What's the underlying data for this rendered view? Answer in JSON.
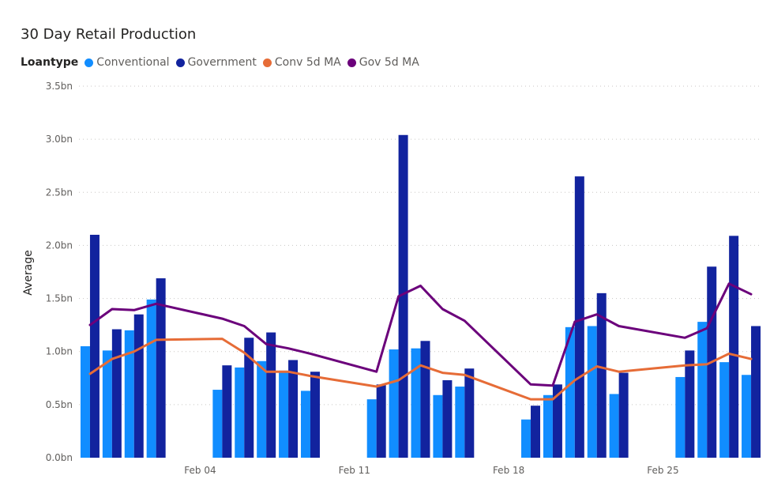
{
  "chart_data": {
    "type": "bar",
    "title": "30 Day Retail Production",
    "legend_title": "Loantype",
    "ylabel": "Average",
    "xlabel": "",
    "ylim": [
      0,
      3.5
    ],
    "y_ticks": [
      "0.0bn",
      "0.5bn",
      "1.0bn",
      "1.5bn",
      "2.0bn",
      "2.5bn",
      "3.0bn",
      "3.5bn"
    ],
    "x_ticks": [
      "Feb 04",
      "Feb 11",
      "Feb 18",
      "Feb 25"
    ],
    "grid": true,
    "legend_position": "top-left",
    "dates": [
      "2024-01-30",
      "2024-01-31",
      "2024-02-01",
      "2024-02-02",
      "2024-02-05",
      "2024-02-06",
      "2024-02-07",
      "2024-02-08",
      "2024-02-09",
      "2024-02-12",
      "2024-02-13",
      "2024-02-14",
      "2024-02-15",
      "2024-02-16",
      "2024-02-19",
      "2024-02-20",
      "2024-02-21",
      "2024-02-22",
      "2024-02-23",
      "2024-02-26",
      "2024-02-27",
      "2024-02-28",
      "2024-02-29"
    ],
    "series": [
      {
        "name": "Conventional",
        "kind": "bar",
        "color": "#118DFF",
        "values": [
          1.05,
          1.01,
          1.2,
          1.49,
          0.64,
          0.85,
          0.91,
          0.82,
          0.63,
          0.55,
          1.02,
          1.03,
          0.59,
          0.67,
          0.36,
          0.59,
          1.23,
          1.24,
          0.6,
          0.76,
          1.28,
          0.9,
          0.78
        ]
      },
      {
        "name": "Government",
        "kind": "bar",
        "color": "#12239E",
        "values": [
          2.1,
          1.21,
          1.35,
          1.69,
          0.87,
          1.13,
          1.18,
          0.92,
          0.81,
          0.69,
          3.04,
          1.1,
          0.73,
          0.84,
          0.49,
          0.69,
          2.65,
          1.55,
          0.8,
          1.01,
          1.8,
          2.09,
          1.24
        ]
      },
      {
        "name": "Conv 5d MA",
        "kind": "line",
        "color": "#E66C37",
        "values": [
          0.79,
          0.93,
          1.0,
          1.11,
          1.12,
          0.99,
          0.81,
          0.81,
          0.77,
          0.67,
          0.73,
          0.87,
          0.8,
          0.78,
          0.55,
          0.55,
          0.73,
          0.86,
          0.81,
          0.87,
          0.88,
          0.98,
          0.93
        ]
      },
      {
        "name": "Gov 5d MA",
        "kind": "line",
        "color": "#6B007B",
        "values": [
          1.25,
          1.4,
          1.39,
          1.45,
          1.31,
          1.24,
          1.07,
          1.03,
          0.98,
          0.81,
          1.52,
          1.62,
          1.4,
          1.29,
          0.69,
          0.68,
          1.28,
          1.35,
          1.24,
          1.13,
          1.22,
          1.64,
          1.54
        ]
      }
    ]
  }
}
